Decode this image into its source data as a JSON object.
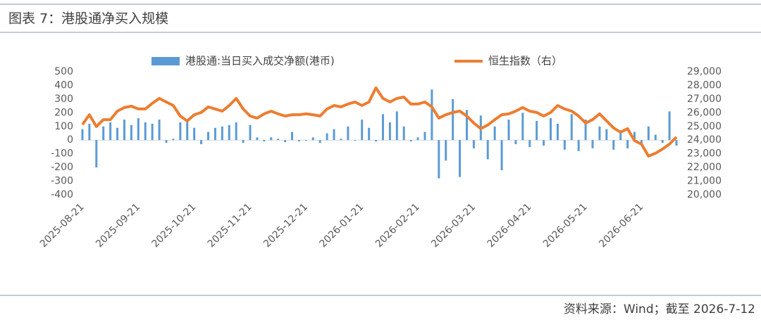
{
  "chart_data": {
    "type": "bar",
    "title": "图表 7：港股通净买入规模",
    "source": "资料来源：Wind；截至 2026-7-12",
    "categories": [
      "2025-08-21",
      null,
      null,
      null,
      null,
      null,
      null,
      null,
      "2025-09-21",
      null,
      null,
      null,
      null,
      null,
      null,
      null,
      "2025-10-21",
      null,
      null,
      null,
      null,
      null,
      null,
      null,
      "2025-11-21",
      null,
      null,
      null,
      null,
      null,
      null,
      null,
      "2025-12-21",
      null,
      null,
      null,
      null,
      null,
      null,
      null,
      "2026-01-21",
      null,
      null,
      null,
      null,
      null,
      null,
      null,
      "2026-02-21",
      null,
      null,
      null,
      null,
      null,
      null,
      null,
      "2026-03-21",
      null,
      null,
      null,
      null,
      null,
      null,
      null,
      "2026-04-21",
      null,
      null,
      null,
      null,
      null,
      null,
      null,
      "2026-05-21",
      null,
      null,
      null,
      null,
      null,
      null,
      null,
      "2026-06-21",
      null,
      null,
      null,
      null,
      null
    ],
    "series": [
      {
        "name": "港股通:当日买入成交净额(港币)",
        "type": "bar",
        "color": "#5B9BD5",
        "values": [
          80,
          120,
          -200,
          100,
          130,
          90,
          150,
          110,
          160,
          130,
          120,
          150,
          -20,
          10,
          130,
          150,
          90,
          -30,
          60,
          90,
          100,
          110,
          130,
          -20,
          110,
          20,
          -10,
          20,
          10,
          -15,
          60,
          -10,
          -5,
          20,
          -20,
          50,
          80,
          10,
          100,
          -5,
          150,
          90,
          -10,
          190,
          130,
          210,
          100,
          -10,
          20,
          60,
          370,
          -280,
          -150,
          300,
          -270,
          220,
          -60,
          180,
          -140,
          100,
          -220,
          150,
          -30,
          200,
          -50,
          140,
          -40,
          160,
          120,
          -70,
          190,
          -80,
          150,
          -60,
          100,
          80,
          -70,
          60,
          -60,
          60,
          -30,
          100,
          40,
          -20,
          210,
          -40
        ]
      },
      {
        "name": "恒生指数（右）",
        "type": "line",
        "axis": "y2",
        "color": "#ED7D31",
        "values": [
          25140,
          25860,
          24990,
          25500,
          25500,
          26120,
          26380,
          26480,
          26280,
          26280,
          26690,
          27050,
          26790,
          26530,
          25760,
          25400,
          25860,
          26020,
          26430,
          26280,
          26120,
          26530,
          27050,
          26280,
          25760,
          25610,
          25920,
          26120,
          25920,
          25760,
          25860,
          25860,
          25920,
          25860,
          25760,
          26280,
          26530,
          26430,
          26640,
          26790,
          26530,
          26790,
          27820,
          27050,
          26790,
          27050,
          27150,
          26640,
          26640,
          26790,
          26430,
          25610,
          25860,
          26020,
          26120,
          25760,
          25250,
          24840,
          25100,
          25500,
          25860,
          25920,
          26120,
          26380,
          26120,
          26020,
          25760,
          26020,
          26530,
          26280,
          26120,
          25760,
          25250,
          25500,
          25920,
          25400,
          24890,
          24580,
          24840,
          23960,
          23710,
          22830,
          23040,
          23350,
          23710,
          24220
        ]
      }
    ],
    "ylim": [
      -400,
      500
    ],
    "yticks": [
      -400,
      -300,
      -200,
      -100,
      0,
      100,
      200,
      300,
      400,
      500
    ],
    "y2lim": [
      20000,
      29000
    ],
    "y2ticks": [
      {
        "value": 20000,
        "label": "20,000"
      },
      {
        "value": 21000,
        "label": "21,000"
      },
      {
        "value": 22000,
        "label": "22,000"
      },
      {
        "value": 23000,
        "label": "23,000"
      },
      {
        "value": 24000,
        "label": "24,000"
      },
      {
        "value": 25000,
        "label": "25,000"
      },
      {
        "value": 26000,
        "label": "26,000"
      },
      {
        "value": 27000,
        "label": "27,000"
      },
      {
        "value": 28000,
        "label": "28,000"
      },
      {
        "value": 29000,
        "label": "29,000"
      }
    ],
    "grid": false
  }
}
